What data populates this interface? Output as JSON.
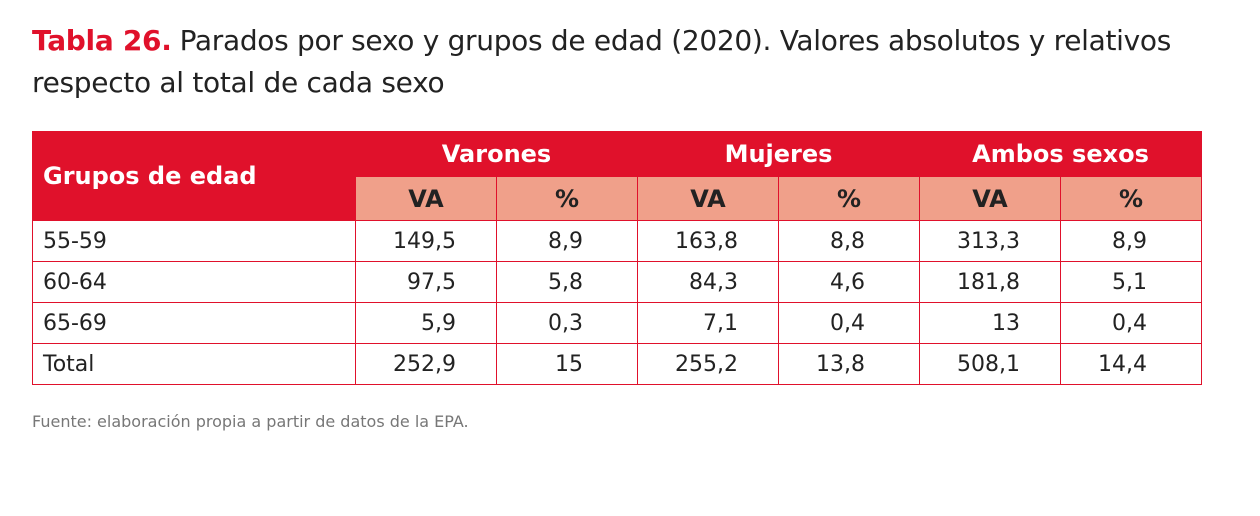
{
  "header": {
    "label": "Tabla 26.",
    "title": "Parados por sexo y grupos de edad (2020). Valores absolutos y relativos respecto al total de cada sexo"
  },
  "table": {
    "row_header": "Grupos de edad",
    "groups": [
      "Varones",
      "Mujeres",
      "Ambos sexos"
    ],
    "subheaders": [
      "VA",
      "%",
      "VA",
      "%",
      "VA",
      "%"
    ],
    "rows": [
      [
        "55-59",
        "149,5",
        "8,9",
        "163,8",
        "8,8",
        "313,3",
        "8,9"
      ],
      [
        "60-64",
        "97,5",
        "5,8",
        "84,3",
        "4,6",
        "181,8",
        "5,1"
      ],
      [
        "65-69",
        "5,9",
        "0,3",
        "7,1",
        "0,4",
        "13",
        "0,4"
      ],
      [
        "Total",
        "252,9",
        "15",
        "255,2",
        "13,8",
        "508,1",
        "14,4"
      ]
    ]
  },
  "source": "Fuente: elaboración propia a partir de datos de la EPA."
}
